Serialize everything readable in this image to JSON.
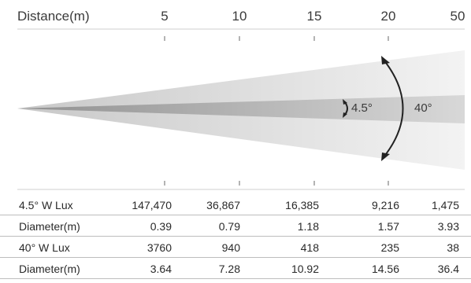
{
  "header": {
    "title": "Distance(m)",
    "distances": [
      "5",
      "10",
      "15",
      "20",
      "50"
    ]
  },
  "beam": {
    "narrow_angle_label": "4.5°",
    "wide_angle_label": "40°"
  },
  "table": {
    "rows": [
      {
        "label": "4.5° W Lux",
        "values": [
          "147,470",
          "36,867",
          "16,385",
          "9,216",
          "1,475"
        ]
      },
      {
        "label": "Diameter(m)",
        "values": [
          "0.39",
          "0.79",
          "1.18",
          "1.57",
          "3.93"
        ]
      },
      {
        "label": "40° W Lux",
        "values": [
          "3760",
          "940",
          "418",
          "235",
          "38"
        ]
      },
      {
        "label": "Diameter(m)",
        "values": [
          "3.64",
          "7.28",
          "10.92",
          "14.56",
          "36.4"
        ]
      }
    ]
  }
}
